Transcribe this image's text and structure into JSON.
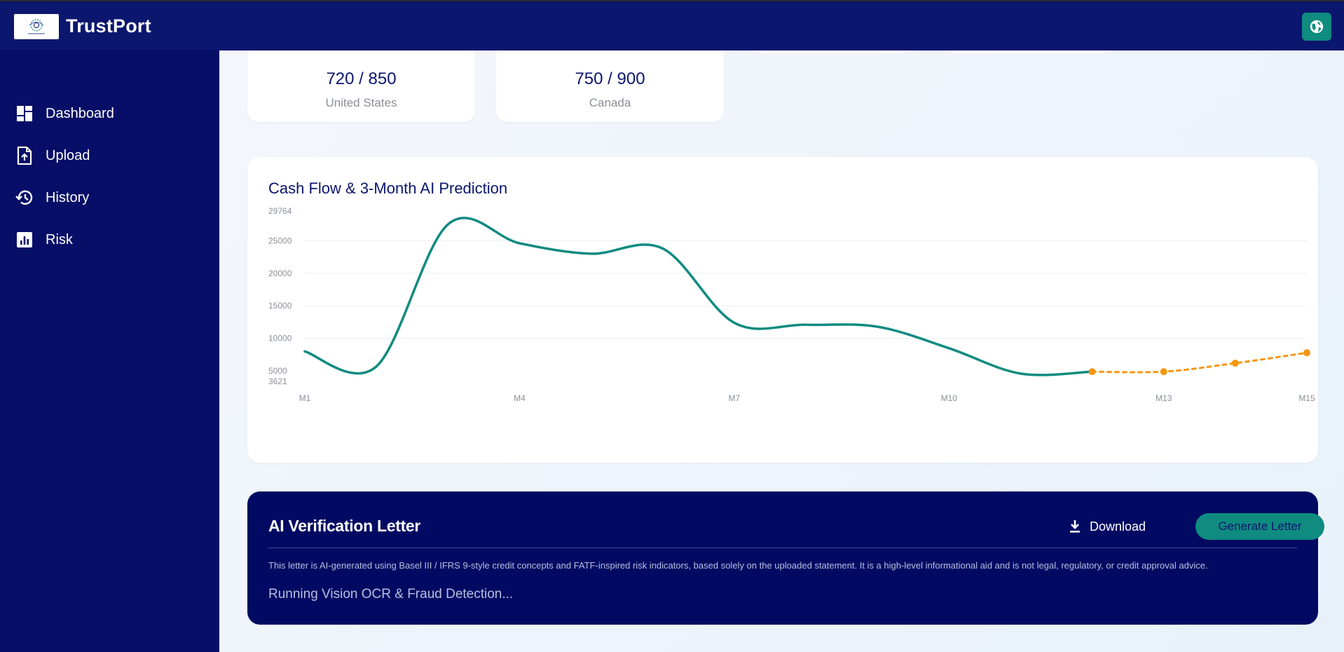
{
  "app": {
    "brand": "TrustPort",
    "icons": {
      "logo": "trustport-logo",
      "language": "globe-icon"
    },
    "colors": {
      "navy": "#0b166e",
      "sidebar": "#060e67",
      "teal": "#0f8b80",
      "forecast": "#f5960f"
    }
  },
  "sidebar": {
    "items": [
      {
        "label": "Dashboard",
        "icon": "dashboard-icon"
      },
      {
        "label": "Upload",
        "icon": "upload-file-icon"
      },
      {
        "label": "History",
        "icon": "history-icon"
      },
      {
        "label": "Risk",
        "icon": "risk-chart-icon"
      }
    ]
  },
  "scores": [
    {
      "value": "720 / 850",
      "country": "United States"
    },
    {
      "value": "750 / 900",
      "country": "Canada"
    }
  ],
  "chart": {
    "title": "Cash Flow & 3-Month AI Prediction"
  },
  "chart_data": {
    "type": "line",
    "title": "Cash Flow & 3-Month AI Prediction",
    "x": [
      "M1",
      "M2",
      "M3",
      "M4",
      "M5",
      "M6",
      "M7",
      "M8",
      "M9",
      "M10",
      "M11",
      "M12",
      "M13",
      "M14",
      "M15"
    ],
    "x_tick_labels": [
      "M1",
      "M4",
      "M7",
      "M10",
      "M13",
      "M15"
    ],
    "y_tick_labels": [
      "29764",
      "25000",
      "20000",
      "15000",
      "10000",
      "5000",
      "3621"
    ],
    "ylim": [
      3621,
      29764
    ],
    "grid": "horizontal",
    "series": [
      {
        "style": "solid",
        "color": "#0f8b80",
        "x": [
          "M1",
          "M2",
          "M3",
          "M4",
          "M5",
          "M6",
          "M7",
          "M8",
          "M9",
          "M10",
          "M11",
          "M12"
        ],
        "values": [
          8000,
          5700,
          27500,
          24600,
          23000,
          23800,
          12400,
          12100,
          11800,
          8500,
          4600,
          4900
        ]
      },
      {
        "style": "dashed",
        "color": "#f5960f",
        "x": [
          "M12",
          "M13",
          "M14",
          "M15"
        ],
        "values": [
          4900,
          4900,
          6200,
          7800
        ]
      }
    ]
  },
  "letter": {
    "title": "AI Verification Letter",
    "download_label": "Download",
    "generate_label": "Generate Letter",
    "note": "This letter is AI-generated using Basel III / IFRS 9-style credit concepts and FATF-inspired risk indicators, based solely on the uploaded statement. It is a high-level informational aid and is not legal, regulatory, or credit approval advice.",
    "status": "Running Vision OCR & Fraud Detection..."
  }
}
